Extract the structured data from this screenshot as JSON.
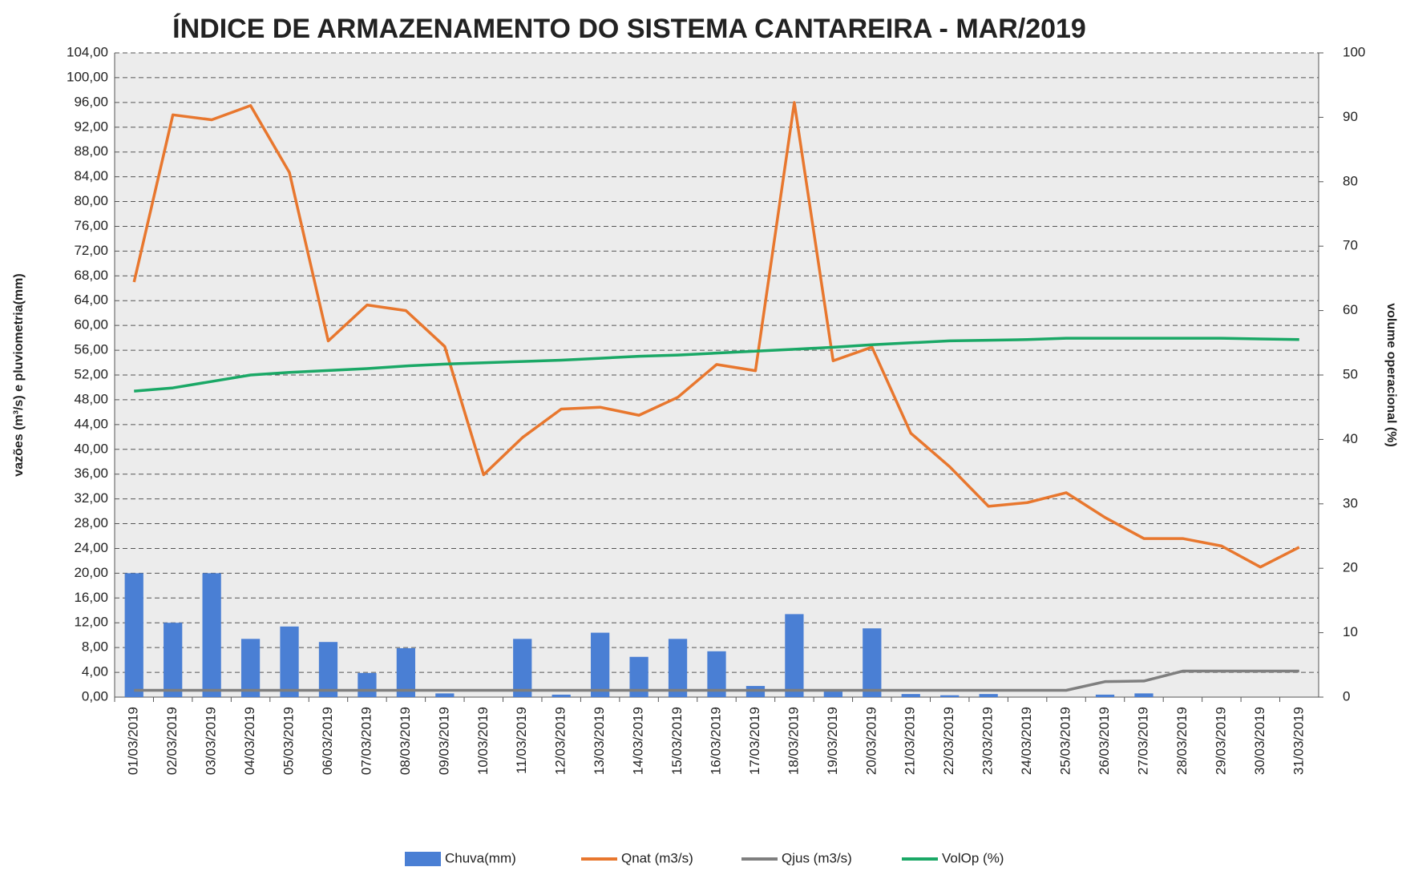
{
  "chart_data": {
    "type": "combo",
    "title": "ÍNDICE DE ARMAZENAMENTO DO SISTEMA CANTAREIRA - MAR/2019",
    "y_label": "vazões (m³/s) e pluviometria(mm)",
    "y2_label": "volume operacional (%)",
    "categories": [
      "01/03/2019",
      "02/03/2019",
      "03/03/2019",
      "04/03/2019",
      "05/03/2019",
      "06/03/2019",
      "07/03/2019",
      "08/03/2019",
      "09/03/2019",
      "10/03/2019",
      "11/03/2019",
      "12/03/2019",
      "13/03/2019",
      "14/03/2019",
      "15/03/2019",
      "16/03/2019",
      "17/03/2019",
      "18/03/2019",
      "19/03/2019",
      "20/03/2019",
      "21/03/2019",
      "22/03/2019",
      "23/03/2019",
      "24/03/2019",
      "25/03/2019",
      "26/03/2019",
      "27/03/2019",
      "28/03/2019",
      "29/03/2019",
      "30/03/2019",
      "31/03/2019"
    ],
    "series": [
      {
        "name": "Chuva(mm)",
        "type": "bar",
        "color": "#4a7fd4",
        "values": [
          20,
          12,
          20,
          9.4,
          11.4,
          8.9,
          3.9,
          7.9,
          0.6,
          0,
          9.4,
          0.4,
          10.4,
          6.5,
          9.4,
          7.4,
          1.8,
          13.4,
          0.9,
          11.1,
          0.5,
          0.3,
          0.5,
          0,
          0,
          0.4,
          0.6,
          0,
          0,
          0,
          0
        ]
      },
      {
        "name": "Qnat (m3/s)",
        "type": "line",
        "color": "#e8772e",
        "values": [
          67,
          94,
          93.2,
          95.5,
          84.7,
          57.5,
          63.3,
          62.4,
          56.6,
          35.9,
          41.9,
          46.5,
          46.8,
          45.5,
          48.4,
          53.7,
          52.7,
          96,
          54.3,
          56.5,
          42.6,
          37.2,
          30.8,
          31.4,
          33,
          29,
          25.6,
          25.6,
          24.4,
          21,
          24.2
        ]
      },
      {
        "name": "Qjus (m3/s)",
        "type": "line",
        "color": "#7f7f7f",
        "values": [
          1.1,
          1.1,
          1.1,
          1.1,
          1.1,
          1.1,
          1.1,
          1.1,
          1.1,
          1.1,
          1.1,
          1.1,
          1.1,
          1.1,
          1.1,
          1.1,
          1.1,
          1.1,
          1.1,
          1.1,
          1.1,
          1.1,
          1.1,
          1.1,
          1.1,
          2.5,
          2.6,
          4.2,
          4.2,
          4.2,
          4.2
        ]
      },
      {
        "name": "VolOp (%)",
        "type": "line",
        "axis": "y2",
        "color": "#1aa866",
        "values": [
          47.5,
          48,
          49,
          50,
          50.4,
          50.7,
          51,
          51.4,
          51.7,
          51.9,
          52.1,
          52.3,
          52.6,
          52.9,
          53.1,
          53.4,
          53.7,
          54,
          54.3,
          54.7,
          55,
          55.3,
          55.4,
          55.5,
          55.7,
          55.7,
          55.7,
          55.7,
          55.7,
          55.6,
          55.5
        ]
      }
    ],
    "ylim": [
      0,
      104
    ],
    "yticks": [
      {
        "value": 0,
        "label": "0,00"
      },
      {
        "value": 4,
        "label": "4,00"
      },
      {
        "value": 8,
        "label": "8,00"
      },
      {
        "value": 12,
        "label": "12,00"
      },
      {
        "value": 16,
        "label": "16,00"
      },
      {
        "value": 20,
        "label": "20,00"
      },
      {
        "value": 24,
        "label": "24,00"
      },
      {
        "value": 28,
        "label": "28,00"
      },
      {
        "value": 32,
        "label": "32,00"
      },
      {
        "value": 36,
        "label": "36,00"
      },
      {
        "value": 40,
        "label": "40,00"
      },
      {
        "value": 44,
        "label": "44,00"
      },
      {
        "value": 48,
        "label": "48,00"
      },
      {
        "value": 52,
        "label": "52,00"
      },
      {
        "value": 56,
        "label": "56,00"
      },
      {
        "value": 60,
        "label": "60,00"
      },
      {
        "value": 64,
        "label": "64,00"
      },
      {
        "value": 68,
        "label": "68,00"
      },
      {
        "value": 72,
        "label": "72,00"
      },
      {
        "value": 76,
        "label": "76,00"
      },
      {
        "value": 80,
        "label": "80,00"
      },
      {
        "value": 84,
        "label": "84,00"
      },
      {
        "value": 88,
        "label": "88,00"
      },
      {
        "value": 92,
        "label": "92,00"
      },
      {
        "value": 96,
        "label": "96,00"
      },
      {
        "value": 100,
        "label": "100,00"
      },
      {
        "value": 104,
        "label": "104,00"
      }
    ],
    "y2lim": [
      0,
      100
    ],
    "y2ticks": [
      0,
      10,
      20,
      30,
      40,
      50,
      60,
      70,
      80,
      90,
      100
    ],
    "grid": true,
    "legend": "bottom"
  }
}
